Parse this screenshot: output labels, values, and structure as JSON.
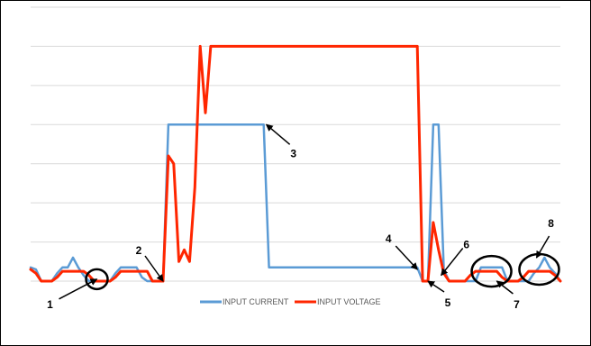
{
  "chart_data": {
    "type": "line",
    "title": "",
    "xlabel": "",
    "ylabel": "",
    "x": [
      0,
      1,
      2,
      3,
      4,
      5,
      6,
      7,
      8,
      9,
      10,
      11,
      12,
      13,
      14,
      15,
      16,
      17,
      18,
      19,
      20,
      21,
      22,
      23,
      24,
      25,
      26,
      27,
      28,
      29,
      30,
      31,
      32,
      33,
      34,
      35,
      36,
      37,
      38,
      39,
      40,
      41,
      42,
      43,
      44,
      45,
      46,
      47,
      48,
      49,
      50,
      51,
      52,
      53,
      54,
      55,
      56,
      57,
      58,
      59,
      60,
      61,
      62,
      63,
      64,
      65,
      66,
      67,
      68,
      69,
      70,
      71,
      72,
      73,
      74,
      75,
      76,
      77,
      78,
      79,
      80,
      81,
      82,
      83,
      84,
      85,
      86,
      87,
      88,
      89,
      90,
      91,
      92,
      93,
      94,
      95,
      96,
      97,
      98,
      99,
      100
    ],
    "ylim": [
      0,
      7
    ],
    "grid": true,
    "legend_position": "bottom",
    "series": [
      {
        "name": "INPUT CURRENT",
        "color": "#5B9BD5",
        "values": [
          0.35,
          0.3,
          0,
          0,
          0,
          0.2,
          0.35,
          0.35,
          0.6,
          0.35,
          0.15,
          0,
          0,
          0,
          0,
          0,
          0.2,
          0.35,
          0.35,
          0.35,
          0.35,
          0.1,
          0,
          0,
          0,
          0,
          4.0,
          4.0,
          4.0,
          4.0,
          4.0,
          4.0,
          4.0,
          4.0,
          4.0,
          4.0,
          4.0,
          4.0,
          4.0,
          4.0,
          4.0,
          4.0,
          4.0,
          4.0,
          4.0,
          0.35,
          0.35,
          0.35,
          0.35,
          0.35,
          0.35,
          0.35,
          0.35,
          0.35,
          0.35,
          0.35,
          0.35,
          0.35,
          0.35,
          0.35,
          0.35,
          0.35,
          0.35,
          0.35,
          0.35,
          0.35,
          0.35,
          0.35,
          0.35,
          0.35,
          0.35,
          0.35,
          0.35,
          0.35,
          0,
          0,
          4.0,
          4.0,
          0.3,
          0,
          0,
          0,
          0,
          0,
          0,
          0.35,
          0.35,
          0.35,
          0.35,
          0.35,
          0,
          0,
          0,
          0,
          0,
          0.2,
          0.35,
          0.6,
          0.35,
          0.2,
          0
        ]
      },
      {
        "name": "INPUT VOLTAGE",
        "color": "#FF2600",
        "values": [
          0.3,
          0.2,
          0,
          0,
          0,
          0.1,
          0.25,
          0.25,
          0.25,
          0.25,
          0.25,
          0.15,
          0,
          0,
          0,
          0,
          0.1,
          0.25,
          0.25,
          0.25,
          0.25,
          0.25,
          0.25,
          0,
          0,
          0,
          3.2,
          3.0,
          0.5,
          0.8,
          0.5,
          2.4,
          6.0,
          4.3,
          6.0,
          6.0,
          6.0,
          6.0,
          6.0,
          6.0,
          6.0,
          6.0,
          6.0,
          6.0,
          6.0,
          6.0,
          6.0,
          6.0,
          6.0,
          6.0,
          6.0,
          6.0,
          6.0,
          6.0,
          6.0,
          6.0,
          6.0,
          6.0,
          6.0,
          6.0,
          6.0,
          6.0,
          6.0,
          6.0,
          6.0,
          6.0,
          6.0,
          6.0,
          6.0,
          6.0,
          6.0,
          6.0,
          6.0,
          6.0,
          0,
          0,
          1.5,
          0.8,
          0.2,
          0,
          0,
          0,
          0,
          0.15,
          0.25,
          0.25,
          0.25,
          0.25,
          0.25,
          0.1,
          0,
          0,
          0,
          0.1,
          0.25,
          0.25,
          0.25,
          0.25,
          0.25,
          0.15,
          0
        ]
      }
    ],
    "legend": [
      "INPUT CURRENT",
      "INPUT VOLTAGE"
    ],
    "annotations": [
      {
        "label": "1",
        "type": "arrow",
        "x": 12.5,
        "y": 0.05
      },
      {
        "label": "2",
        "type": "arrow",
        "x": 25,
        "y": 0
      },
      {
        "label": "3",
        "type": "arrow",
        "x": 44.5,
        "y": 4.0
      },
      {
        "label": "4",
        "type": "arrow",
        "x": 73,
        "y": 0.3
      },
      {
        "label": "5",
        "type": "arrow",
        "x": 75,
        "y": 0
      },
      {
        "label": "6",
        "type": "arrow",
        "x": 77.5,
        "y": 0.15
      },
      {
        "label": "7",
        "type": "arrow",
        "x": 88,
        "y": 0
      },
      {
        "label": "8",
        "type": "arrow",
        "x": 95.5,
        "y": 0.6
      }
    ],
    "circles": [
      {
        "x": 12.5,
        "y": 0.05
      },
      {
        "x": 87,
        "y": 0.25
      },
      {
        "x": 96,
        "y": 0.3
      }
    ]
  }
}
